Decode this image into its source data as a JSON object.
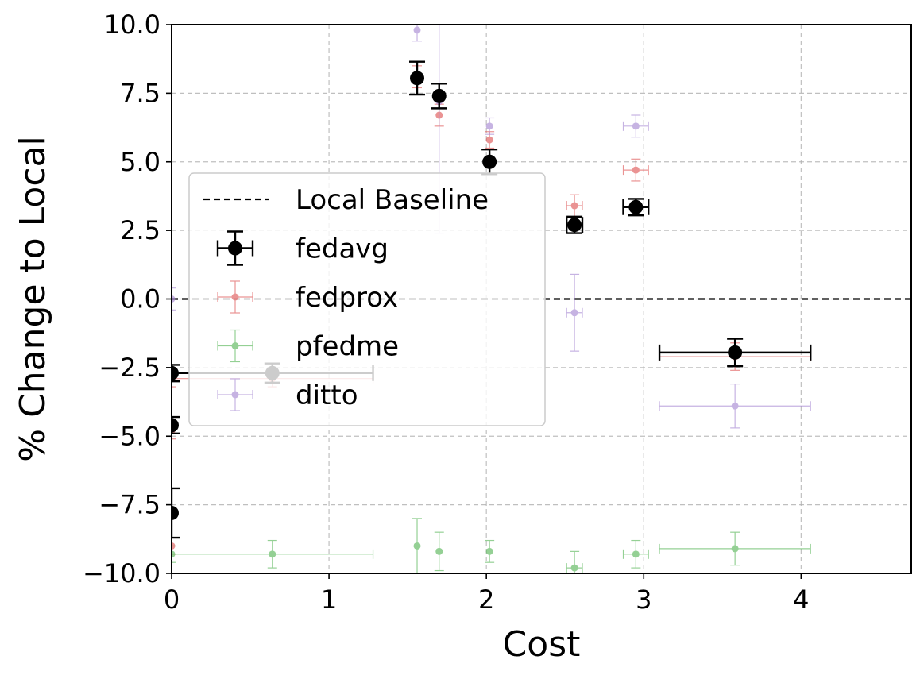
{
  "chart_data": {
    "type": "scatter",
    "title": "",
    "xlabel": "Cost",
    "ylabel": "% Change to Local",
    "xlim": [
      0,
      4.7
    ],
    "ylim": [
      -10,
      10
    ],
    "xticks": [
      0,
      1,
      2,
      3,
      4
    ],
    "yticks": [
      -10.0,
      -7.5,
      -5.0,
      -2.5,
      0.0,
      2.5,
      5.0,
      7.5,
      10.0
    ],
    "xtick_labels": [
      "0",
      "1",
      "2",
      "3",
      "4"
    ],
    "ytick_labels": [
      "−10.0",
      "−7.5",
      "−5.0",
      "−2.5",
      "0.0",
      "2.5",
      "5.0",
      "7.5",
      "10.0"
    ],
    "grid": true,
    "baseline": {
      "label": "Local Baseline",
      "y": 0
    },
    "legend": {
      "position": "upper-left",
      "entries": [
        "Local Baseline",
        "fedavg",
        "fedprox",
        "pfedme",
        "ditto"
      ]
    },
    "series": [
      {
        "name": "fedprox",
        "color": "#e05a5a",
        "points": [
          {
            "x": 0.0,
            "y": -2.9,
            "xerr": 0.0,
            "yerr": 0.3
          },
          {
            "x": 0.0,
            "y": -4.8,
            "xerr": 0.0,
            "yerr": 0.3
          },
          {
            "x": 0.0,
            "y": -9.0,
            "xerr": 0.0,
            "yerr": 0.3
          },
          {
            "x": 0.64,
            "y": -2.9,
            "xerr": 0.64,
            "yerr": 0.3
          },
          {
            "x": 1.56,
            "y": 8.1,
            "xerr": 0.0,
            "yerr": 0.4
          },
          {
            "x": 1.7,
            "y": 6.7,
            "xerr": 0.0,
            "yerr": 0.4
          },
          {
            "x": 2.02,
            "y": 5.8,
            "xerr": 0.0,
            "yerr": 0.3
          },
          {
            "x": 2.56,
            "y": 3.4,
            "xerr": 0.05,
            "yerr": 0.4
          },
          {
            "x": 2.95,
            "y": 4.7,
            "xerr": 0.08,
            "yerr": 0.4
          },
          {
            "x": 3.58,
            "y": -2.1,
            "xerr": 0.48,
            "yerr": 0.5
          }
        ]
      },
      {
        "name": "pfedme",
        "color": "#5cb85c",
        "points": [
          {
            "x": 0.0,
            "y": -9.3,
            "xerr": 0.0,
            "yerr": 0.3
          },
          {
            "x": 0.64,
            "y": -9.3,
            "xerr": 0.64,
            "yerr": 0.5
          },
          {
            "x": 1.56,
            "y": -9.0,
            "xerr": 0.0,
            "yerr": 1.0
          },
          {
            "x": 1.7,
            "y": -9.2,
            "xerr": 0.0,
            "yerr": 0.7
          },
          {
            "x": 2.02,
            "y": -9.2,
            "xerr": 0.0,
            "yerr": 0.4
          },
          {
            "x": 2.56,
            "y": -9.8,
            "xerr": 0.05,
            "yerr": 0.6
          },
          {
            "x": 2.95,
            "y": -9.3,
            "xerr": 0.08,
            "yerr": 0.5
          },
          {
            "x": 3.58,
            "y": -9.1,
            "xerr": 0.48,
            "yerr": 0.6
          }
        ]
      },
      {
        "name": "ditto",
        "color": "#a98bd4",
        "points": [
          {
            "x": 0.0,
            "y": 0.0,
            "xerr": 0.0,
            "yerr": 0.4
          },
          {
            "x": 1.56,
            "y": 9.8,
            "xerr": 0.0,
            "yerr": 0.4
          },
          {
            "x": 1.7,
            "y": 7.2,
            "xerr": 0.0,
            "yerr": 4.8
          },
          {
            "x": 2.02,
            "y": 6.3,
            "xerr": 0.0,
            "yerr": 0.3
          },
          {
            "x": 2.56,
            "y": -0.5,
            "xerr": 0.05,
            "yerr": 1.4
          },
          {
            "x": 2.95,
            "y": 6.3,
            "xerr": 0.08,
            "yerr": 0.4
          },
          {
            "x": 3.58,
            "y": -3.9,
            "xerr": 0.48,
            "yerr": 0.8
          }
        ]
      },
      {
        "name": "fedavg",
        "color": "#000000",
        "points": [
          {
            "x": 0.0,
            "y": -2.7,
            "xerr": 0.0,
            "yerr": 0.3
          },
          {
            "x": 0.0,
            "y": -4.6,
            "xerr": 0.0,
            "yerr": 0.3
          },
          {
            "x": 0.0,
            "y": -7.8,
            "xerr": 0.0,
            "yerr": 0.9
          },
          {
            "x": 0.64,
            "y": -2.7,
            "xerr": 0.64,
            "yerr": 0.35
          },
          {
            "x": 1.56,
            "y": 8.05,
            "xerr": 0.0,
            "yerr": 0.6
          },
          {
            "x": 1.7,
            "y": 7.4,
            "xerr": 0.0,
            "yerr": 0.45
          },
          {
            "x": 2.02,
            "y": 5.0,
            "xerr": 0.0,
            "yerr": 0.45
          },
          {
            "x": 2.56,
            "y": 2.7,
            "xerr": 0.05,
            "yerr": 0.3
          },
          {
            "x": 2.95,
            "y": 3.35,
            "xerr": 0.08,
            "yerr": 0.3
          },
          {
            "x": 3.58,
            "y": -1.95,
            "xerr": 0.48,
            "yerr": 0.5
          }
        ]
      }
    ]
  }
}
